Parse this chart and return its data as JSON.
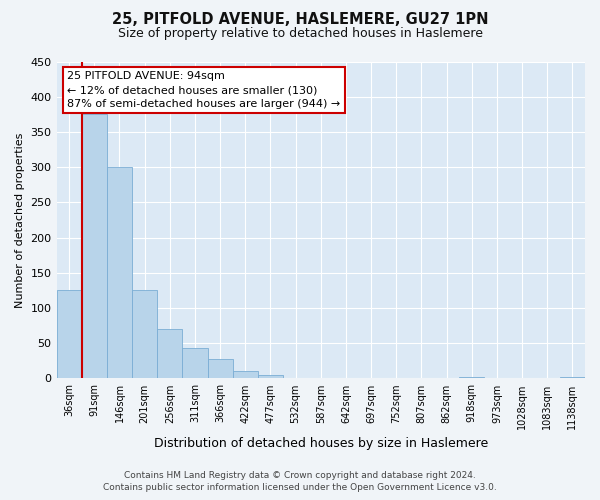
{
  "title": "25, PITFOLD AVENUE, HASLEMERE, GU27 1PN",
  "subtitle": "Size of property relative to detached houses in Haslemere",
  "xlabel": "Distribution of detached houses by size in Haslemere",
  "ylabel": "Number of detached properties",
  "bar_labels": [
    "36sqm",
    "91sqm",
    "146sqm",
    "201sqm",
    "256sqm",
    "311sqm",
    "366sqm",
    "422sqm",
    "477sqm",
    "532sqm",
    "587sqm",
    "642sqm",
    "697sqm",
    "752sqm",
    "807sqm",
    "862sqm",
    "918sqm",
    "973sqm",
    "1028sqm",
    "1083sqm",
    "1138sqm"
  ],
  "bar_heights": [
    125,
    375,
    300,
    125,
    70,
    43,
    28,
    10,
    5,
    0,
    0,
    0,
    0,
    0,
    0,
    0,
    2,
    0,
    0,
    0,
    2
  ],
  "bar_color": "#b8d4ea",
  "bar_edge_color": "#7badd4",
  "vline_color": "#cc0000",
  "vline_position": 1,
  "ylim": [
    0,
    450
  ],
  "yticks": [
    0,
    50,
    100,
    150,
    200,
    250,
    300,
    350,
    400,
    450
  ],
  "annotation_title": "25 PITFOLD AVENUE: 94sqm",
  "annotation_line1": "← 12% of detached houses are smaller (130)",
  "annotation_line2": "87% of semi-detached houses are larger (944) →",
  "footer_line1": "Contains HM Land Registry data © Crown copyright and database right 2024.",
  "footer_line2": "Contains public sector information licensed under the Open Government Licence v3.0.",
  "bg_color": "#dce9f5",
  "fig_bg_color": "#f0f4f8",
  "grid_color": "#ffffff",
  "title_fontsize": 10.5,
  "subtitle_fontsize": 9,
  "ylabel_fontsize": 8,
  "xlabel_fontsize": 9,
  "tick_fontsize": 7,
  "ann_fontsize": 8,
  "footer_fontsize": 6.5
}
